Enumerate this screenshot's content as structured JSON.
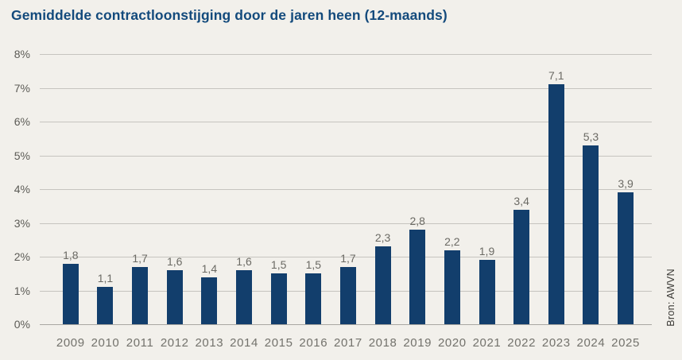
{
  "page": {
    "title": "Gemiddelde contractloonstijging door de jaren heen (12-maands)",
    "source": "Bron: AWVN"
  },
  "chart_data": {
    "type": "bar",
    "title": "Gemiddelde contractloonstijging door de jaren heen (12-maands)",
    "categories": [
      "2009",
      "2010",
      "2011",
      "2012",
      "2013",
      "2014",
      "2015",
      "2016",
      "2017",
      "2018",
      "2019",
      "2020",
      "2021",
      "2022",
      "2023",
      "2024",
      "2025"
    ],
    "values": [
      1.8,
      1.1,
      1.7,
      1.6,
      1.4,
      1.6,
      1.5,
      1.5,
      1.7,
      2.3,
      2.8,
      2.2,
      1.9,
      3.4,
      7.1,
      5.3,
      3.9
    ],
    "value_labels": [
      "1,8",
      "1,1",
      "1,7",
      "1,6",
      "1,4",
      "1,6",
      "1,5",
      "1,5",
      "1,7",
      "2,3",
      "2,8",
      "2,2",
      "1,9",
      "3,4",
      "7,1",
      "5,3",
      "3,9"
    ],
    "xlabel": "",
    "ylabel": "",
    "ylim": [
      0,
      8
    ],
    "yticks": [
      0,
      1,
      2,
      3,
      4,
      5,
      6,
      7,
      8
    ],
    "ytick_labels": [
      "0%",
      "1%",
      "2%",
      "3%",
      "4%",
      "5%",
      "6%",
      "7%",
      "8%"
    ],
    "grid": true,
    "legend": false,
    "source": "Bron: AWVN",
    "colors": {
      "background": "#f2f0eb",
      "bar": "#123e6c",
      "title": "#134a7c",
      "gridline": "#c6c4bf",
      "baseline": "#a9a7a2",
      "value_label": "#6b6a64",
      "x_tick": "#73726c",
      "y_tick": "#5c5b56",
      "source_text": "#3a3935"
    }
  }
}
